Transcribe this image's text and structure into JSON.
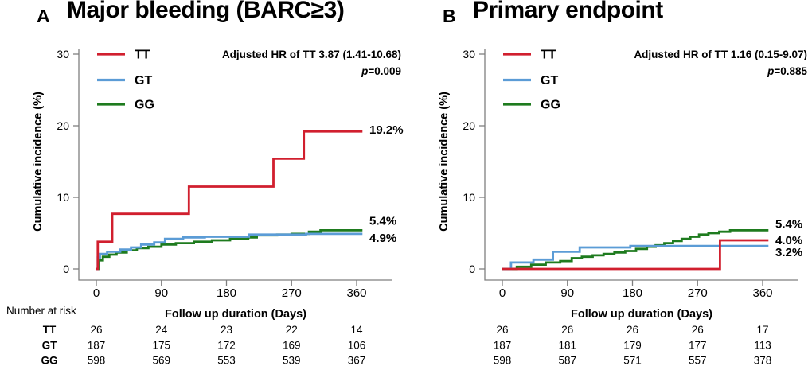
{
  "figure": {
    "background": "#ffffff"
  },
  "colors": {
    "tt": "#d11f2e",
    "gt": "#5b9cd6",
    "gg": "#1e7b1e",
    "axis": "#7f7f7f",
    "text": "#000000"
  },
  "panels": [
    {
      "letter": "A",
      "title": "Major bleeding (BARC≥3)",
      "annotation": {
        "line1": "Adjusted HR of TT 3.87 (1.41-10.68)",
        "p_label": "p",
        "p_value": "=0.009"
      },
      "number_at_risk_label": "Number at risk"
    },
    {
      "letter": "B",
      "title": "Primary endpoint",
      "annotation": {
        "line1": "Adjusted HR of TT 1.16 (0.15-9.07)",
        "p_label": "p",
        "p_value": "=0.885"
      }
    }
  ],
  "chart_data": [
    {
      "type": "line",
      "subtype": "step-cumulative-incidence",
      "title": "Major bleeding (BARC≥3)",
      "xlabel": "Follow up duration (Days)",
      "ylabel": "Cumulative incidence (%)",
      "xlim": [
        0,
        360
      ],
      "ylim": [
        0,
        30
      ],
      "x_ticks": [
        0,
        90,
        180,
        270,
        360
      ],
      "y_ticks": [
        0,
        10,
        20,
        30
      ],
      "legend_position": "top-left-inside",
      "grid": false,
      "series": [
        {
          "name": "GG",
          "color_key": "gg",
          "end_label": "5.4%",
          "label_dy": -12,
          "end_day": 368,
          "steps": [
            [
              0,
              0
            ],
            [
              3,
              1.2
            ],
            [
              9,
              1.7
            ],
            [
              18,
              2.0
            ],
            [
              28,
              2.3
            ],
            [
              42,
              2.6
            ],
            [
              56,
              2.9
            ],
            [
              72,
              3.1
            ],
            [
              90,
              3.4
            ],
            [
              110,
              3.6
            ],
            [
              135,
              3.8
            ],
            [
              160,
              4.0
            ],
            [
              185,
              4.2
            ],
            [
              210,
              4.4
            ],
            [
              222,
              4.7
            ],
            [
              250,
              4.8
            ],
            [
              270,
              4.9
            ],
            [
              294,
              5.2
            ],
            [
              310,
              5.4
            ]
          ]
        },
        {
          "name": "GT",
          "color_key": "gt",
          "end_label": "4.9%",
          "label_dy": 5,
          "end_day": 368,
          "steps": [
            [
              0,
              0
            ],
            [
              2,
              1.6
            ],
            [
              5,
              2.1
            ],
            [
              15,
              2.4
            ],
            [
              33,
              2.7
            ],
            [
              48,
              3.0
            ],
            [
              62,
              3.4
            ],
            [
              80,
              3.7
            ],
            [
              95,
              4.2
            ],
            [
              120,
              4.4
            ],
            [
              150,
              4.5
            ],
            [
              211,
              4.8
            ],
            [
              290,
              4.9
            ]
          ]
        },
        {
          "name": "TT",
          "color_key": "tt",
          "end_label": "19.2%",
          "label_dy": -2,
          "end_day": 368,
          "steps": [
            [
              0,
              0
            ],
            [
              2,
              3.8
            ],
            [
              22,
              7.7
            ],
            [
              128,
              11.5
            ],
            [
              245,
              15.4
            ],
            [
              287,
              19.2
            ]
          ]
        }
      ],
      "legend_order": [
        "TT",
        "GT",
        "GG"
      ],
      "risk_table": {
        "rows": [
          {
            "label": "TT",
            "color_key": "tt",
            "values": [
              "26",
              "24",
              "23",
              "22",
              "14"
            ]
          },
          {
            "label": "GT",
            "color_key": "gt",
            "values": [
              "187",
              "175",
              "172",
              "169",
              "106"
            ]
          },
          {
            "label": "GG",
            "color_key": "gg",
            "values": [
              "598",
              "569",
              "553",
              "539",
              "367"
            ]
          }
        ]
      }
    },
    {
      "type": "line",
      "subtype": "step-cumulative-incidence",
      "title": "Primary endpoint",
      "xlabel": "Follow up duration (Days)",
      "ylabel": "Cumulative incidence (%)",
      "xlim": [
        0,
        360
      ],
      "ylim": [
        0,
        30
      ],
      "x_ticks": [
        0,
        90,
        180,
        270,
        360
      ],
      "y_ticks": [
        0,
        10,
        20,
        30
      ],
      "legend_position": "top-left-inside",
      "grid": false,
      "series": [
        {
          "name": "GG",
          "color_key": "gg",
          "end_label": "5.4%",
          "label_dy": -8,
          "end_day": 368,
          "steps": [
            [
              0,
              0
            ],
            [
              20,
              0.3
            ],
            [
              40,
              0.6
            ],
            [
              60,
              0.9
            ],
            [
              80,
              1.1
            ],
            [
              96,
              1.5
            ],
            [
              110,
              1.7
            ],
            [
              125,
              1.9
            ],
            [
              140,
              2.1
            ],
            [
              155,
              2.3
            ],
            [
              170,
              2.5
            ],
            [
              185,
              2.8
            ],
            [
              200,
              3.1
            ],
            [
              212,
              3.3
            ],
            [
              224,
              3.6
            ],
            [
              236,
              3.9
            ],
            [
              248,
              4.2
            ],
            [
              260,
              4.5
            ],
            [
              272,
              4.8
            ],
            [
              285,
              5.0
            ],
            [
              300,
              5.2
            ],
            [
              315,
              5.4
            ]
          ]
        },
        {
          "name": "GT",
          "color_key": "gt",
          "end_label": "3.2%",
          "label_dy": 8,
          "end_day": 368,
          "steps": [
            [
              0,
              0
            ],
            [
              12,
              0.9
            ],
            [
              43,
              1.3
            ],
            [
              70,
              2.4
            ],
            [
              107,
              3.0
            ],
            [
              177,
              3.2
            ]
          ]
        },
        {
          "name": "TT",
          "color_key": "tt",
          "end_label": "4.0%",
          "label_dy": 0,
          "end_day": 368,
          "steps": [
            [
              0,
              0
            ],
            [
              301,
              4.0
            ]
          ]
        }
      ],
      "legend_order": [
        "TT",
        "GT",
        "GG"
      ],
      "risk_table": {
        "rows": [
          {
            "label": null,
            "color_key": "tt",
            "values": [
              "26",
              "26",
              "26",
              "26",
              "17"
            ]
          },
          {
            "label": null,
            "color_key": "gt",
            "values": [
              "187",
              "181",
              "179",
              "177",
              "113"
            ]
          },
          {
            "label": null,
            "color_key": "gg",
            "values": [
              "598",
              "587",
              "571",
              "557",
              "378"
            ]
          }
        ]
      }
    }
  ]
}
